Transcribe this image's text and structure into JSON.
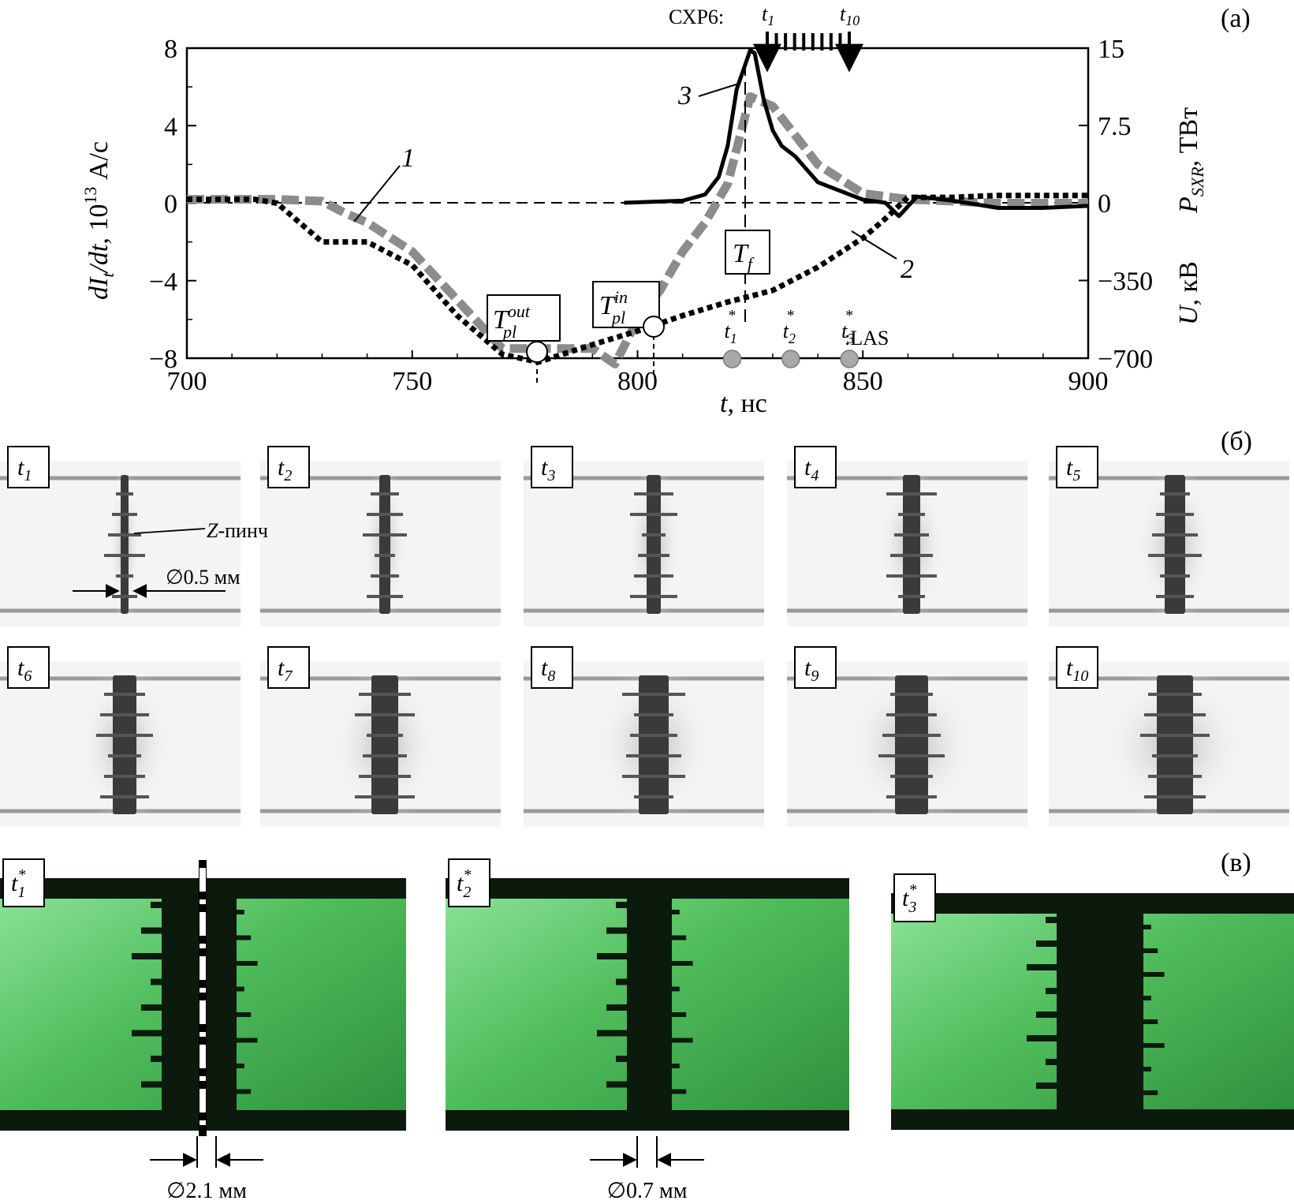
{
  "panel_labels": {
    "a": "(а)",
    "b": "(б)",
    "c": "(в)"
  },
  "chart_data": {
    "type": "line",
    "xlabel_var": "t",
    "xlabel_unit": ", нс",
    "xlim": [
      700,
      900
    ],
    "x_ticks": [
      "700",
      "750",
      "800",
      "850",
      "900"
    ],
    "ylabel_left": {
      "var": "dI",
      "sub": "t",
      "slash": "/d",
      "var2": "t",
      "rest": ", 10",
      "sup": "13",
      "unit": " А/с"
    },
    "ylim_left": [
      -8,
      8
    ],
    "y_ticks_left": [
      "8",
      "4",
      "0",
      "−4",
      "−8"
    ],
    "ylabel_right_top": {
      "var": "P",
      "sub": "SXR",
      "unit": ", ТВт"
    },
    "y_ticks_right_top": [
      "15",
      "7.5",
      "0"
    ],
    "ylabel_right_bottom": {
      "var": "U",
      "unit": ", кВ"
    },
    "y_ticks_right_bottom": [
      "−350",
      "−700"
    ],
    "series": [
      {
        "name": "1",
        "style": "gray-dashed",
        "color": "#8c8c8c",
        "x": [
          700,
          710,
          720,
          730,
          735,
          740,
          750,
          760,
          770,
          780,
          790,
          795,
          800,
          805,
          810,
          815,
          820,
          825,
          830,
          840,
          850,
          860,
          870,
          880,
          900
        ],
        "y": [
          0.2,
          0.2,
          0.2,
          0.1,
          -0.5,
          -1.0,
          -2.5,
          -5.0,
          -7.5,
          -7.5,
          -7.5,
          -8.3,
          -6.0,
          -4.5,
          -2.5,
          -1.0,
          1.0,
          5.5,
          5.0,
          2.0,
          0.5,
          0.2,
          0.1,
          0.0,
          0.0
        ]
      },
      {
        "name": "2",
        "style": "black-dotted",
        "color": "#000000",
        "x": [
          700,
          710,
          715,
          720,
          725,
          730,
          740,
          750,
          760,
          770,
          778,
          790,
          800,
          805,
          810,
          820,
          830,
          840,
          850,
          855,
          860,
          870,
          880,
          900
        ],
        "y": [
          0.2,
          0.2,
          0.2,
          0.0,
          -1.0,
          -2.0,
          -2.0,
          -3.2,
          -5.8,
          -7.8,
          -8.2,
          -7.3,
          -6.6,
          -6.2,
          -5.8,
          -5.1,
          -4.5,
          -3.3,
          -1.8,
          -0.8,
          0.3,
          0.3,
          0.4,
          0.4
        ]
      },
      {
        "name": "3",
        "style": "black-solid",
        "color": "#000000",
        "x": [
          797,
          810,
          815,
          818,
          820,
          822,
          825,
          826,
          828,
          830,
          832,
          835,
          840,
          850,
          855,
          858,
          862,
          870,
          880,
          890,
          900
        ],
        "y": [
          0,
          0.2,
          0.8,
          2.5,
          5.5,
          11.0,
          14.8,
          14.5,
          10.0,
          7.0,
          5.5,
          4.5,
          2.0,
          0.3,
          0.0,
          -1.3,
          0.6,
          0.2,
          -0.5,
          -0.5,
          -0.3
        ]
      }
    ],
    "markers": {
      "T_pl_out": {
        "label_var": "T",
        "label_sub": "pl",
        "label_sup": "out",
        "x": 778
      },
      "T_pl_in": {
        "label_var": "T",
        "label_sub": "pl",
        "label_sup": "in",
        "x": 803
      },
      "T_f": {
        "label_var": "T",
        "label_sub": "f",
        "x": 826
      }
    },
    "sxr_label": "СХР6:",
    "sxr_t1": {
      "var": "t",
      "sub": "1"
    },
    "sxr_t10": {
      "var": "t",
      "sub": "10"
    },
    "las_label": ":LAS",
    "las_points": [
      {
        "sub": "1",
        "x": 821
      },
      {
        "sub": "2",
        "x": 834
      },
      {
        "sub": "3",
        "x": 847
      }
    ]
  },
  "frames_b": [
    {
      "var": "t",
      "sub": "1"
    },
    {
      "var": "t",
      "sub": "2"
    },
    {
      "var": "t",
      "sub": "3"
    },
    {
      "var": "t",
      "sub": "4"
    },
    {
      "var": "t",
      "sub": "5"
    },
    {
      "var": "t",
      "sub": "6"
    },
    {
      "var": "t",
      "sub": "7"
    },
    {
      "var": "t",
      "sub": "8"
    },
    {
      "var": "t",
      "sub": "9"
    },
    {
      "var": "t",
      "sub": "10"
    }
  ],
  "zpinch_label": {
    "var": "Z",
    "rest": "-пинч"
  },
  "diam_b": "∅0.5 мм",
  "frames_c": [
    {
      "var": "t",
      "sub": "1",
      "sup": "*",
      "diam": "∅2.1 мм"
    },
    {
      "var": "t",
      "sub": "2",
      "sup": "*",
      "diam": "∅0.7 мм"
    },
    {
      "var": "t",
      "sub": "3",
      "sup": "*",
      "diam": ""
    }
  ]
}
